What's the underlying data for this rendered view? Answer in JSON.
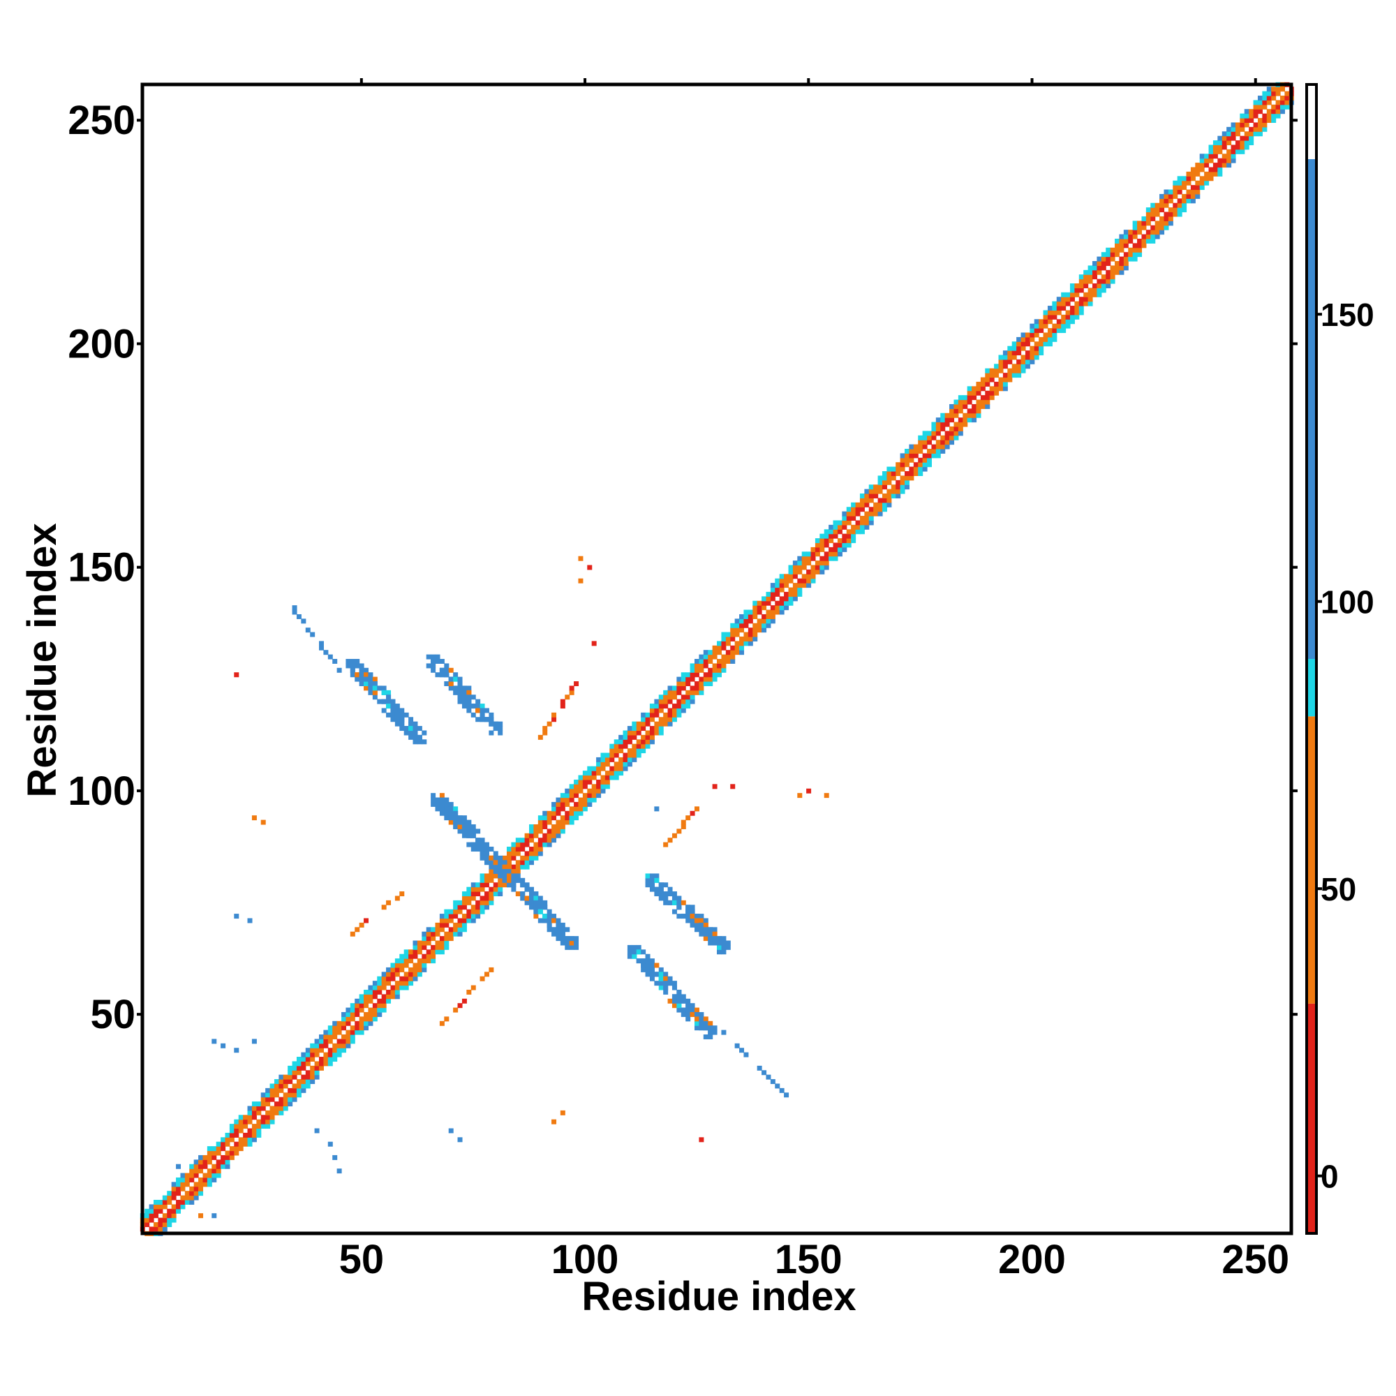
{
  "chart_data": {
    "type": "heatmap",
    "title": "",
    "xlabel": "Residue index",
    "ylabel": "Residue index",
    "xlim": [
      1,
      258
    ],
    "ylim": [
      1,
      258
    ],
    "x_ticks": [
      50,
      100,
      150,
      200,
      250
    ],
    "y_ticks": [
      50,
      100,
      150,
      200,
      250
    ],
    "x_tick_labels": [
      "50",
      "100",
      "150",
      "200",
      "250"
    ],
    "y_tick_labels": [
      "50",
      "100",
      "150",
      "200",
      "250"
    ],
    "grid": false,
    "legend": "colorbar-right",
    "colorbar": {
      "range": [
        -10,
        190
      ],
      "ticks": [
        0,
        50,
        100,
        150
      ],
      "tick_labels": [
        "0",
        "50",
        "100",
        "150"
      ],
      "bands": [
        {
          "from": -10,
          "to": 30,
          "color": "#e2231a"
        },
        {
          "from": 30,
          "to": 80,
          "color": "#f07a10"
        },
        {
          "from": 80,
          "to": 90,
          "color": "#1ed6e6"
        },
        {
          "from": 90,
          "to": 177,
          "color": "#3c8ad0"
        },
        {
          "from": 177,
          "to": 190,
          "color": "#ffffff"
        }
      ]
    },
    "diagonal": {
      "from": 1,
      "to": 258,
      "half_width": 4
    },
    "segments": [
      {
        "name": "helix-contact-a",
        "start": [
          48,
          128
        ],
        "end": [
          63,
          112
        ],
        "value": 120
      },
      {
        "name": "helix-contact-b",
        "start": [
          66,
          129
        ],
        "end": [
          80,
          114
        ],
        "value": 120
      },
      {
        "name": "helix-contact-c",
        "start": [
          67,
          98
        ],
        "end": [
          97,
          66
        ],
        "value": 120
      },
      {
        "name": "helix-contact-d",
        "start": [
          115,
          80
        ],
        "end": [
          131,
          65
        ],
        "value": 120
      },
      {
        "name": "helix-contact-e",
        "start": [
          111,
          64
        ],
        "end": [
          128,
          46
        ],
        "value": 120
      },
      {
        "name": "contact-f",
        "start": [
          31,
          146
        ],
        "end": [
          45,
          127
        ],
        "value": 95
      },
      {
        "name": "contact-g",
        "start": [
          131,
          46
        ],
        "end": [
          145,
          32
        ],
        "value": 95
      },
      {
        "name": "contact-h",
        "start": [
          90,
          112
        ],
        "end": [
          98,
          124
        ],
        "value": 40
      },
      {
        "name": "contact-i",
        "start": [
          117,
          87
        ],
        "end": [
          126,
          97
        ],
        "value": 40
      },
      {
        "name": "contact-j",
        "start": [
          48,
          68
        ],
        "end": [
          61,
          79
        ],
        "value": 40
      },
      {
        "name": "contact-k",
        "start": [
          68,
          48
        ],
        "end": [
          79,
          60
        ],
        "value": 40
      }
    ],
    "spots": [
      {
        "x": 99,
        "y": 152,
        "value": 40
      },
      {
        "x": 101,
        "y": 150,
        "value": 20
      },
      {
        "x": 99,
        "y": 147,
        "value": 40
      },
      {
        "x": 102,
        "y": 133,
        "value": 20
      },
      {
        "x": 22,
        "y": 126,
        "value": 20
      },
      {
        "x": 26,
        "y": 94,
        "value": 40
      },
      {
        "x": 28,
        "y": 93,
        "value": 40
      },
      {
        "x": 22,
        "y": 72,
        "value": 95
      },
      {
        "x": 25,
        "y": 71,
        "value": 120
      },
      {
        "x": 17,
        "y": 44,
        "value": 95
      },
      {
        "x": 19,
        "y": 43,
        "value": 120
      },
      {
        "x": 22,
        "y": 42,
        "value": 95
      },
      {
        "x": 26,
        "y": 44,
        "value": 95
      },
      {
        "x": 40,
        "y": 24,
        "value": 95
      },
      {
        "x": 43,
        "y": 21,
        "value": 120
      },
      {
        "x": 44,
        "y": 18,
        "value": 120
      },
      {
        "x": 45,
        "y": 15,
        "value": 95
      },
      {
        "x": 70,
        "y": 24,
        "value": 95
      },
      {
        "x": 72,
        "y": 22,
        "value": 120
      },
      {
        "x": 93,
        "y": 26,
        "value": 40
      },
      {
        "x": 95,
        "y": 28,
        "value": 40
      },
      {
        "x": 126,
        "y": 22,
        "value": 20
      },
      {
        "x": 148,
        "y": 99,
        "value": 40
      },
      {
        "x": 150,
        "y": 100,
        "value": 20
      },
      {
        "x": 154,
        "y": 99,
        "value": 40
      },
      {
        "x": 129,
        "y": 101,
        "value": 20
      },
      {
        "x": 133,
        "y": 101,
        "value": 20
      },
      {
        "x": 116,
        "y": 96,
        "value": 120
      },
      {
        "x": 9,
        "y": 16,
        "value": 95
      },
      {
        "x": 14,
        "y": 5,
        "value": 40
      },
      {
        "x": 17,
        "y": 5,
        "value": 95
      }
    ]
  }
}
